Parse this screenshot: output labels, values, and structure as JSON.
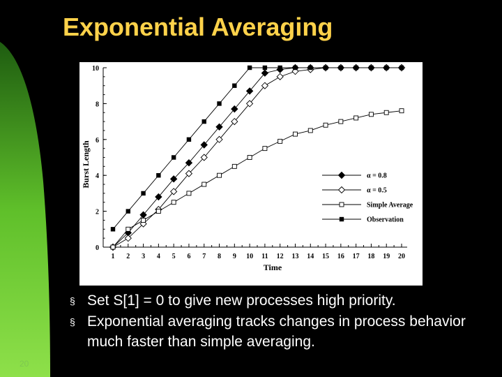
{
  "slide": {
    "title": "Exponential Averaging",
    "page_number": "20",
    "bullet_marker": "§",
    "bullets": [
      "Set S[1] = 0 to give new processes high priority.",
      "Exponential averaging tracks changes in process behavior much faster than simple averaging."
    ],
    "colors": {
      "title": "#ffd24a",
      "background": "#000000",
      "accent": "#7ec850"
    }
  },
  "chart_data": {
    "type": "line",
    "xlabel": "Time",
    "ylabel": "Burst Length",
    "x": [
      1,
      2,
      3,
      4,
      5,
      6,
      7,
      8,
      9,
      10,
      11,
      12,
      13,
      14,
      15,
      16,
      17,
      18,
      19,
      20
    ],
    "xticks": [
      "1",
      "2",
      "3",
      "4",
      "5",
      "6",
      "7",
      "8",
      "9",
      "10",
      "11",
      "12",
      "13",
      "14",
      "15",
      "16",
      "17",
      "18",
      "19",
      "20"
    ],
    "yticks": [
      "0",
      "2",
      "4",
      "6",
      "8",
      "10"
    ],
    "xlim": [
      1,
      20
    ],
    "ylim": [
      0,
      10
    ],
    "grid": false,
    "legend_position": "bottom-right",
    "series": [
      {
        "name": "α = 0.8",
        "marker": "filled-diamond",
        "values": [
          0,
          0.8,
          1.8,
          2.8,
          3.8,
          4.7,
          5.7,
          6.7,
          7.7,
          8.7,
          9.7,
          9.9,
          10,
          10,
          10,
          10,
          10,
          10,
          10,
          10
        ]
      },
      {
        "name": "α = 0.5",
        "marker": "open-diamond",
        "values": [
          0,
          0.5,
          1.3,
          2.1,
          3.1,
          4.1,
          5.0,
          6.0,
          7.0,
          8.0,
          9.0,
          9.5,
          9.8,
          9.9,
          10,
          10,
          10,
          10,
          10,
          10
        ]
      },
      {
        "name": "Simple Average",
        "marker": "open-square",
        "values": [
          0,
          1.0,
          1.5,
          2.0,
          2.5,
          3.0,
          3.5,
          4.0,
          4.5,
          5.0,
          5.5,
          5.9,
          6.3,
          6.5,
          6.8,
          7.0,
          7.2,
          7.4,
          7.5,
          7.6
        ]
      },
      {
        "name": "Observation",
        "marker": "filled-square",
        "values": [
          1,
          2,
          3,
          4,
          5,
          6,
          7,
          8,
          9,
          10,
          10,
          10,
          10,
          10,
          10,
          10,
          10,
          10,
          10,
          10
        ]
      }
    ]
  }
}
